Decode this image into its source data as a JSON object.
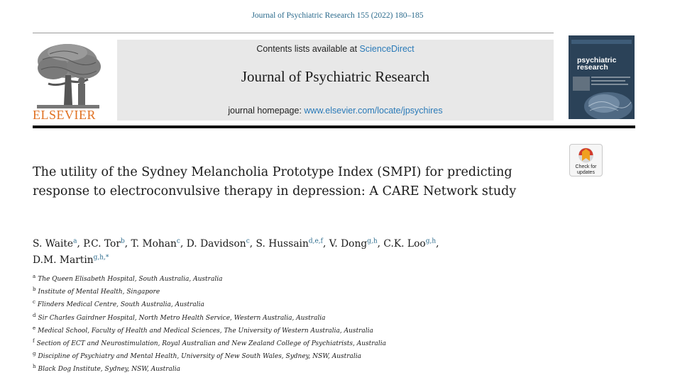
{
  "journal_reference": "Journal of Psychiatric Research 155 (2022) 180–185",
  "publisher": {
    "name": "ELSEVIER",
    "logo_icon": "elsevier-tree-logo",
    "accent_color": "#e07020"
  },
  "masthead": {
    "contents_prefix": "Contents lists available at ",
    "contents_link": "ScienceDirect",
    "journal_title": "Journal of Psychiatric Research",
    "homepage_prefix": "journal homepage: ",
    "homepage_url": "www.elsevier.com/locate/jpsychires"
  },
  "cover": {
    "title_line1": "psychiatric",
    "title_line2": "research"
  },
  "check_updates": {
    "line1": "Check for",
    "line2": "updates"
  },
  "article": {
    "title": "The utility of the Sydney Melancholia Prototype Index (SMPI) for predicting response to electroconvulsive therapy in depression: A CARE Network study"
  },
  "authors": [
    {
      "name": "S. Waite",
      "sup": "a"
    },
    {
      "name": "P.C. Tor",
      "sup": "b"
    },
    {
      "name": "T. Mohan",
      "sup": "c"
    },
    {
      "name": "D. Davidson",
      "sup": "c"
    },
    {
      "name": "S. Hussain",
      "sup": "d,e,f"
    },
    {
      "name": "V. Dong",
      "sup": "g,h"
    },
    {
      "name": "C.K. Loo",
      "sup": "g,h"
    },
    {
      "name": "D.M. Martin",
      "sup": "g,h,*"
    }
  ],
  "affiliations": [
    {
      "label": "a",
      "text": "The Queen Elisabeth Hospital, South Australia, Australia"
    },
    {
      "label": "b",
      "text": "Institute of Mental Health, Singapore"
    },
    {
      "label": "c",
      "text": "Flinders Medical Centre, South Australia, Australia"
    },
    {
      "label": "d",
      "text": "Sir Charles Gairdner Hospital, North Metro Health Service, Western Australia, Australia"
    },
    {
      "label": "e",
      "text": "Medical School, Faculty of Health and Medical Sciences, The University of Western Australia, Australia"
    },
    {
      "label": "f",
      "text": "Section of ECT and Neurostimulation, Royal Australian and New Zealand College of Psychiatrists, Australia"
    },
    {
      "label": "g",
      "text": "Discipline of Psychiatry and Mental Health, University of New South Wales, Sydney, NSW, Australia"
    },
    {
      "label": "h",
      "text": "Black Dog Institute, Sydney, NSW, Australia"
    }
  ]
}
